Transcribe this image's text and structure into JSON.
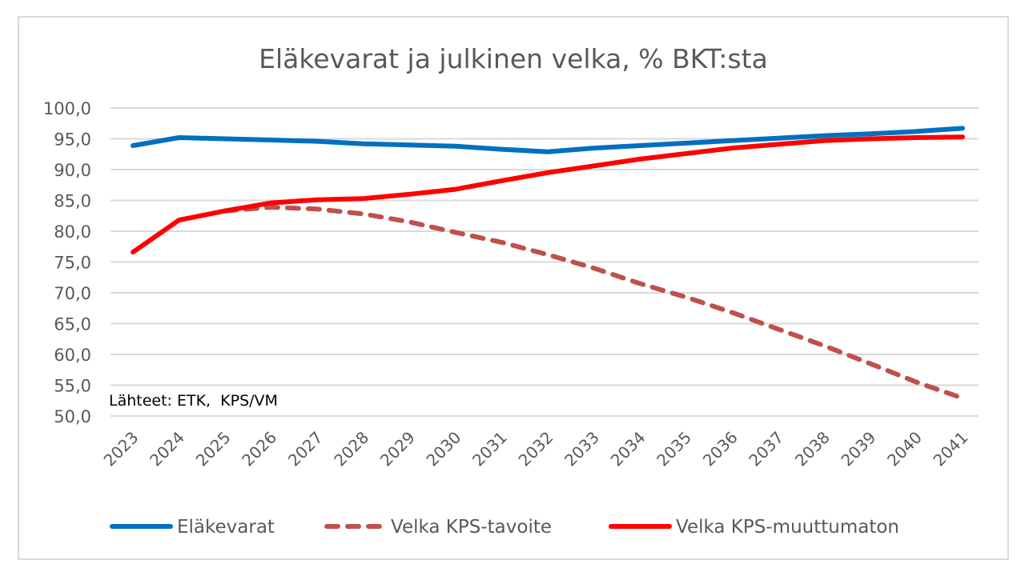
{
  "chart_data": {
    "type": "line",
    "title": "Eläkevarat ja julkinen velka, % BKT:sta",
    "xlabel": "",
    "ylabel": "",
    "ylim": [
      50,
      100
    ],
    "y_ticks": [
      "100,0",
      "95,0",
      "90,0",
      "85,0",
      "80,0",
      "75,0",
      "70,0",
      "65,0",
      "60,0",
      "55,0",
      "50,0"
    ],
    "y_tick_values": [
      100,
      95,
      90,
      85,
      80,
      75,
      70,
      65,
      60,
      55,
      50
    ],
    "categories": [
      "2023",
      "2024",
      "2025",
      "2026",
      "2027",
      "2028",
      "2029",
      "2030",
      "2031",
      "2032",
      "2033",
      "2034",
      "2035",
      "2036",
      "2037",
      "2038",
      "2039",
      "2040",
      "2041"
    ],
    "grid": true,
    "legend_position": "bottom",
    "annotation": "Lähteet: ETK,  KPS/VM",
    "series": [
      {
        "name": "Eläkevarat",
        "color": "#0070c0",
        "style": "solid",
        "values": [
          93.9,
          95.2,
          95.0,
          94.8,
          94.6,
          94.2,
          94.0,
          93.8,
          93.3,
          92.9,
          93.5,
          93.9,
          94.3,
          94.7,
          95.1,
          95.5,
          95.8,
          96.2,
          96.7
        ]
      },
      {
        "name": "Velka KPS-tavoite",
        "color": "#c0504d",
        "style": "dashed",
        "values": [
          null,
          null,
          83.3,
          83.9,
          83.6,
          82.8,
          81.5,
          79.8,
          78.2,
          76.2,
          74.0,
          71.5,
          69.3,
          66.8,
          64.1,
          61.4,
          58.5,
          55.5,
          52.9
        ]
      },
      {
        "name": "Velka KPS-muuttumaton",
        "color": "#ff0000",
        "style": "solid",
        "values": [
          76.6,
          81.8,
          83.3,
          84.6,
          85.1,
          85.3,
          86.0,
          86.8,
          88.2,
          89.5,
          90.6,
          91.7,
          92.6,
          93.5,
          94.1,
          94.7,
          95.0,
          95.2,
          95.3
        ]
      }
    ]
  }
}
